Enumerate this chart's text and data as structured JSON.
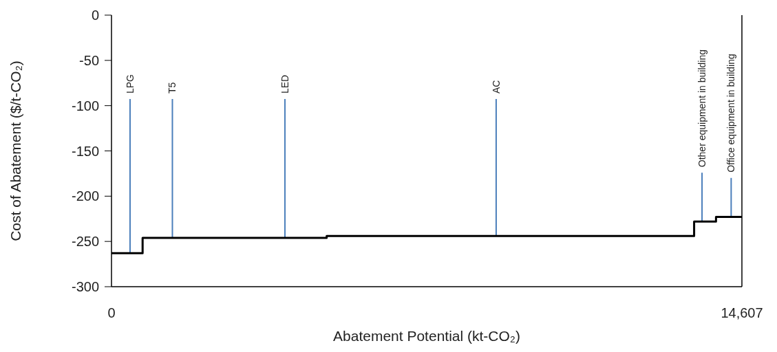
{
  "chart_data": {
    "type": "step",
    "xlabel": "Abatement Potential (kt-CO₂)",
    "ylabel": "Cost of Abatement ($/t-CO₂)",
    "x": [
      0,
      721,
      4986,
      13500,
      14007,
      14607
    ],
    "series": [
      {
        "color": "#000000",
        "values": [
          -263,
          -246,
          -244,
          -228,
          -223,
          -223
        ]
      }
    ],
    "xlim": [
      0,
      14607
    ],
    "xticks": [
      0,
      {
        "value": 14607,
        "label": "14,607"
      }
    ],
    "ylim": [
      -300,
      0
    ],
    "yticks": [
      0,
      -50,
      -100,
      -150,
      -200,
      -250,
      -300
    ],
    "annotations": [
      {
        "text": "LPG",
        "x": 430,
        "y": -263
      },
      {
        "text": "T5",
        "x": 1411,
        "y": -246
      },
      {
        "text": "LED",
        "x": 4019,
        "y": -246
      },
      {
        "text": "AC",
        "x": 8913,
        "y": -244
      },
      {
        "text": "Other equipment in building",
        "x": 13683,
        "y": -228
      },
      {
        "text": "Office equipment in building",
        "x": 14358,
        "y": -223
      }
    ]
  }
}
